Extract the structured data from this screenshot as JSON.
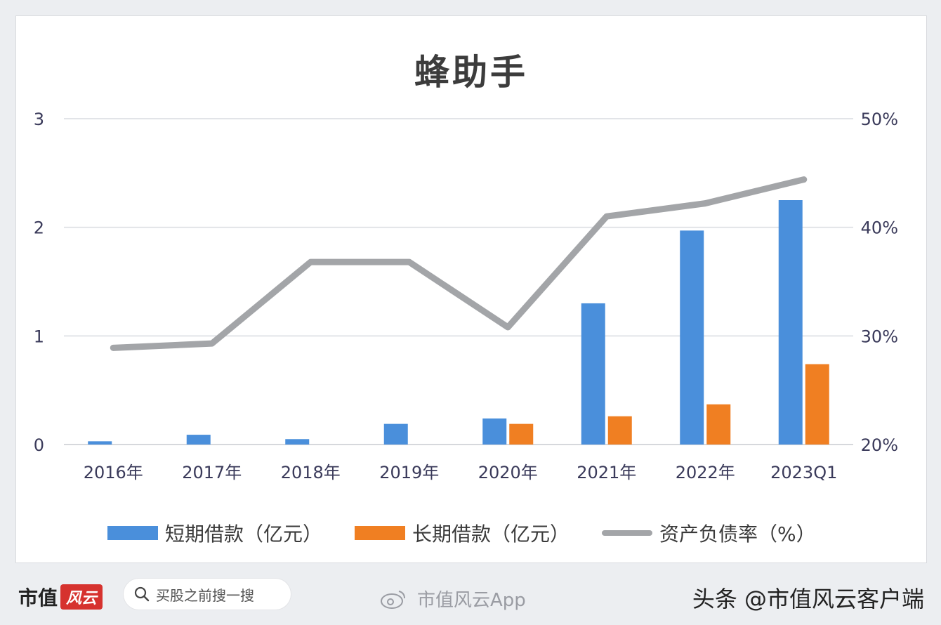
{
  "header": {
    "title": "蜂助手"
  },
  "chart_data": {
    "type": "bar",
    "title": "蜂助手",
    "categories": [
      "2016年",
      "2017年",
      "2018年",
      "2019年",
      "2020年",
      "2021年",
      "2022年",
      "2023Q1"
    ],
    "series": [
      {
        "name": "短期借款（亿元）",
        "type": "bar",
        "axis": "left",
        "color": "#4a8fdb",
        "values": [
          0.03,
          0.09,
          0.05,
          0.19,
          0.24,
          1.3,
          1.97,
          2.25
        ]
      },
      {
        "name": "长期借款（亿元）",
        "type": "bar",
        "axis": "left",
        "color": "#f07f22",
        "values": [
          0,
          0,
          0,
          0,
          0.19,
          0.26,
          0.37,
          0.74
        ]
      },
      {
        "name": "资产负债率（%）",
        "type": "line",
        "axis": "right",
        "color": "#a3a5a8",
        "values": [
          28.9,
          29.3,
          36.8,
          36.8,
          30.8,
          41.0,
          42.2,
          44.4
        ]
      }
    ],
    "left_axis": {
      "ylim": [
        0,
        3
      ],
      "ticks": [
        "0",
        "1",
        "2",
        "3"
      ]
    },
    "right_axis": {
      "ylim": [
        20,
        50
      ],
      "ticks": [
        "20%",
        "30%",
        "40%",
        "50%"
      ]
    },
    "grid": true,
    "legend_position": "bottom"
  },
  "footer": {
    "brand_text": "市值",
    "brand_badge": "风云",
    "search_placeholder": "买股之前搜一搜",
    "watermark_app": "市值风云App",
    "source": "头条 @市值风云客户端"
  }
}
